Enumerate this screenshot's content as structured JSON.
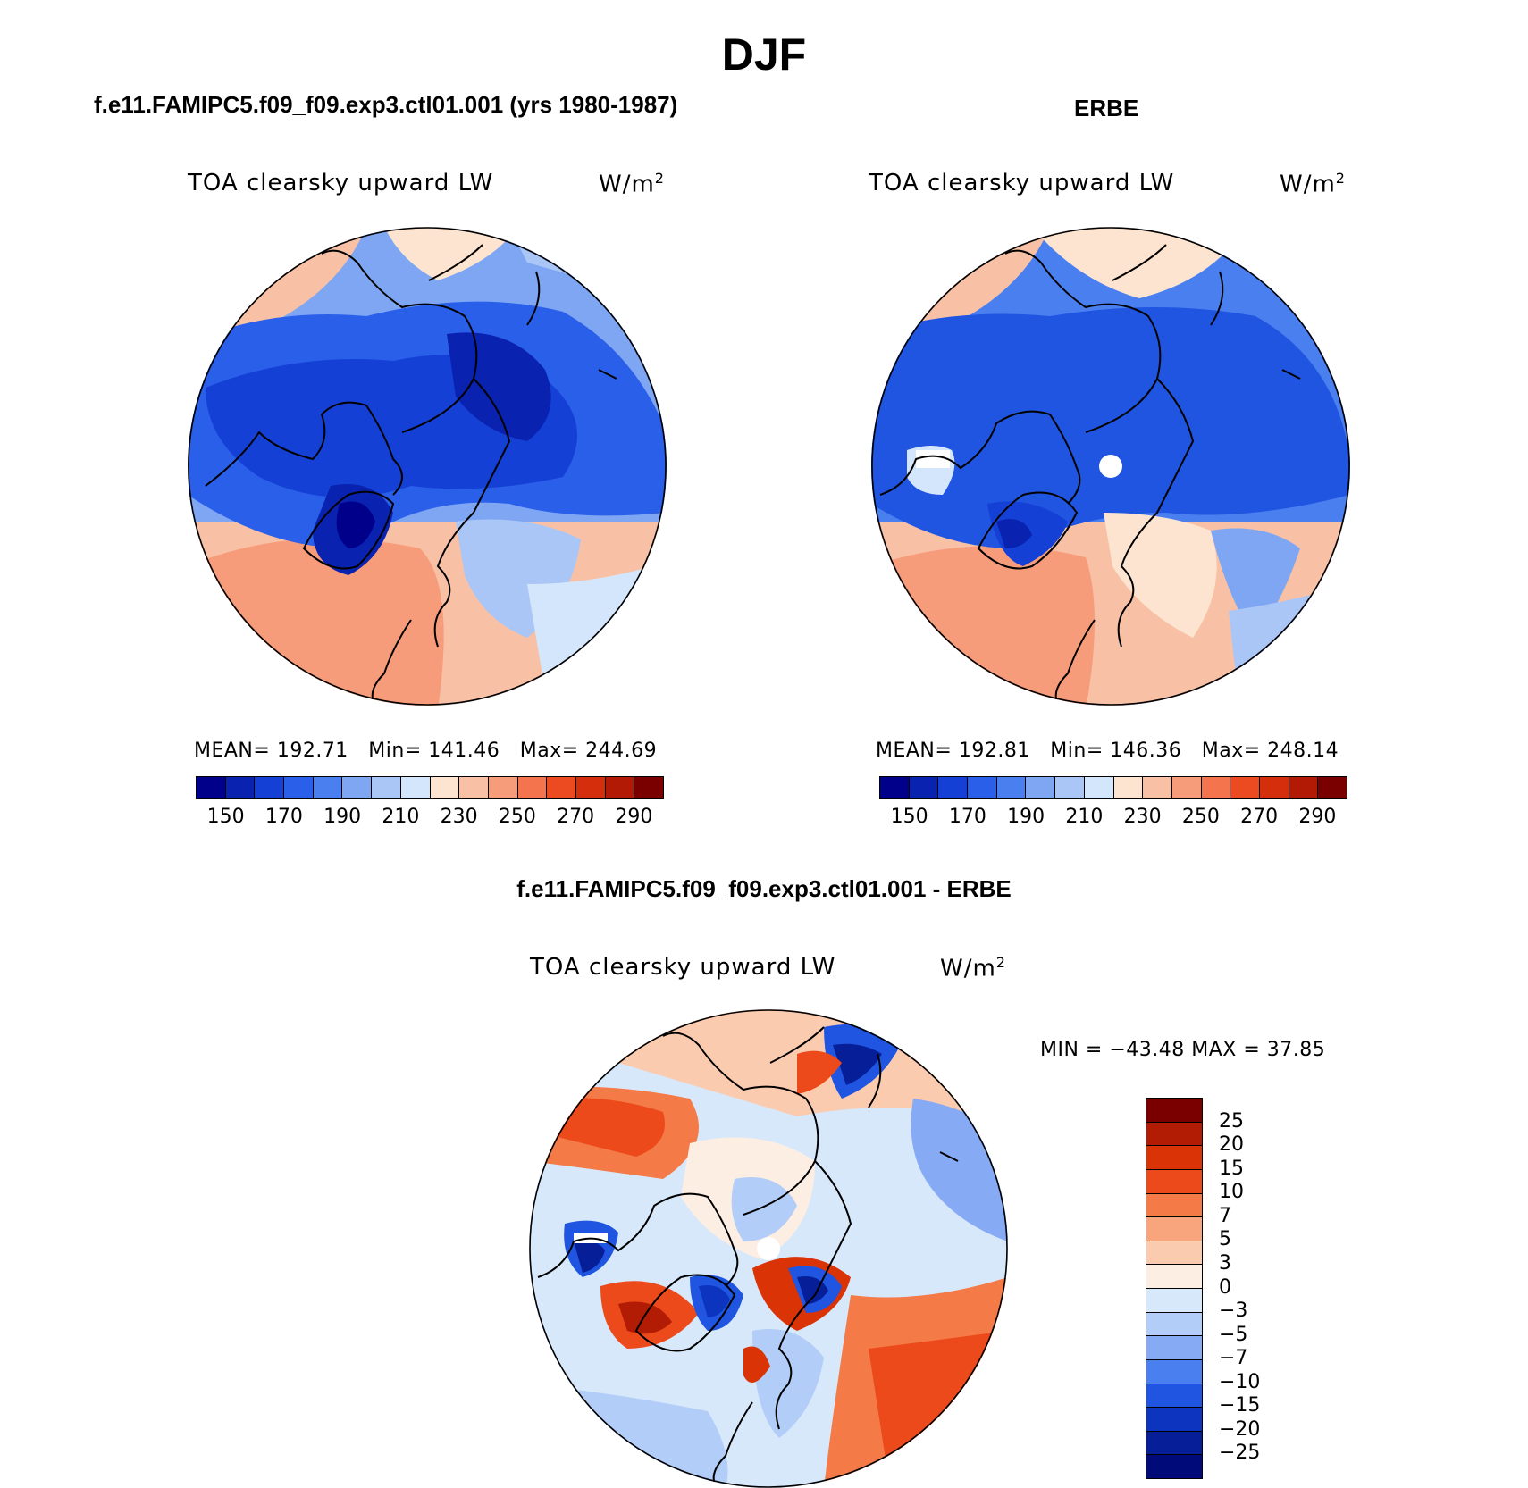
{
  "title": "DJF",
  "panels": [
    {
      "id": "model",
      "heading": "f.e11.FAMIPC5.f09_f09.exp3.ctl01.001 (yrs 1980-1987)",
      "variable": "TOA clearsky upward LW",
      "unit_base": "W/m",
      "unit_exp": "2",
      "stats": {
        "mean_label": "MEAN=",
        "mean": "192.71",
        "min_label": "Min=",
        "min": "141.46",
        "max_label": "Max=",
        "max": "244.69"
      }
    },
    {
      "id": "obs",
      "heading": "ERBE",
      "variable": "TOA clearsky upward LW",
      "unit_base": "W/m",
      "unit_exp": "2",
      "stats": {
        "mean_label": "MEAN=",
        "mean": "192.81",
        "min_label": "Min=",
        "min": "146.36",
        "max_label": "Max=",
        "max": "248.14"
      }
    },
    {
      "id": "diff",
      "heading": "f.e11.FAMIPC5.f09_f09.exp3.ctl01.001 - ERBE",
      "variable": "TOA clearsky upward LW",
      "unit_base": "W/m",
      "unit_exp": "2",
      "stats_line": "MIN = −43.48 MAX =  37.85"
    }
  ],
  "chart_data": [
    {
      "type": "heatmap",
      "projection": "north-polar-stereographic",
      "title": "f.e11.FAMIPC5.f09_f09.exp3.ctl01.001 (yrs 1980-1987)",
      "variable": "TOA clearsky upward LW",
      "units": "W/m2",
      "mean": 192.71,
      "min": 141.46,
      "max": 244.69,
      "colorbar_ticks": [
        "150",
        "170",
        "190",
        "210",
        "230",
        "250",
        "270",
        "290"
      ]
    },
    {
      "type": "heatmap",
      "projection": "north-polar-stereographic",
      "title": "ERBE",
      "variable": "TOA clearsky upward LW",
      "units": "W/m2",
      "mean": 192.81,
      "min": 146.36,
      "max": 248.14,
      "colorbar_ticks": [
        "150",
        "170",
        "190",
        "210",
        "230",
        "250",
        "270",
        "290"
      ]
    },
    {
      "type": "heatmap",
      "projection": "north-polar-stereographic",
      "title": "f.e11.FAMIPC5.f09_f09.exp3.ctl01.001 - ERBE",
      "variable": "TOA clearsky upward LW",
      "units": "W/m2",
      "min": -43.48,
      "max": 37.85,
      "colorbar_ticks": [
        "25",
        "20",
        "15",
        "10",
        "7",
        "5",
        "3",
        "0",
        "−3",
        "−5",
        "−7",
        "−10",
        "−15",
        "−20",
        "−25"
      ]
    }
  ],
  "colors": {
    "abs_palette": [
      "#00008b",
      "#0a22b0",
      "#1440d6",
      "#2a5fea",
      "#4a7ff0",
      "#7ea6f3",
      "#aac6f7",
      "#d4e6fb",
      "#fde4d0",
      "#f8c1a6",
      "#f79c7a",
      "#f4744d",
      "#ec4a20",
      "#d42e0c",
      "#b21a06",
      "#7a0000"
    ],
    "diff_palette": [
      "#7a0000",
      "#b31c04",
      "#d93306",
      "#ec4a1a",
      "#f47a48",
      "#f8a47c",
      "#fbcbb0",
      "#fdeee4",
      "#d8e8fb",
      "#b2cdf7",
      "#86aaf4",
      "#4a7ff0",
      "#1f55e0",
      "#0c34bf",
      "#061f99",
      "#000a78"
    ]
  }
}
